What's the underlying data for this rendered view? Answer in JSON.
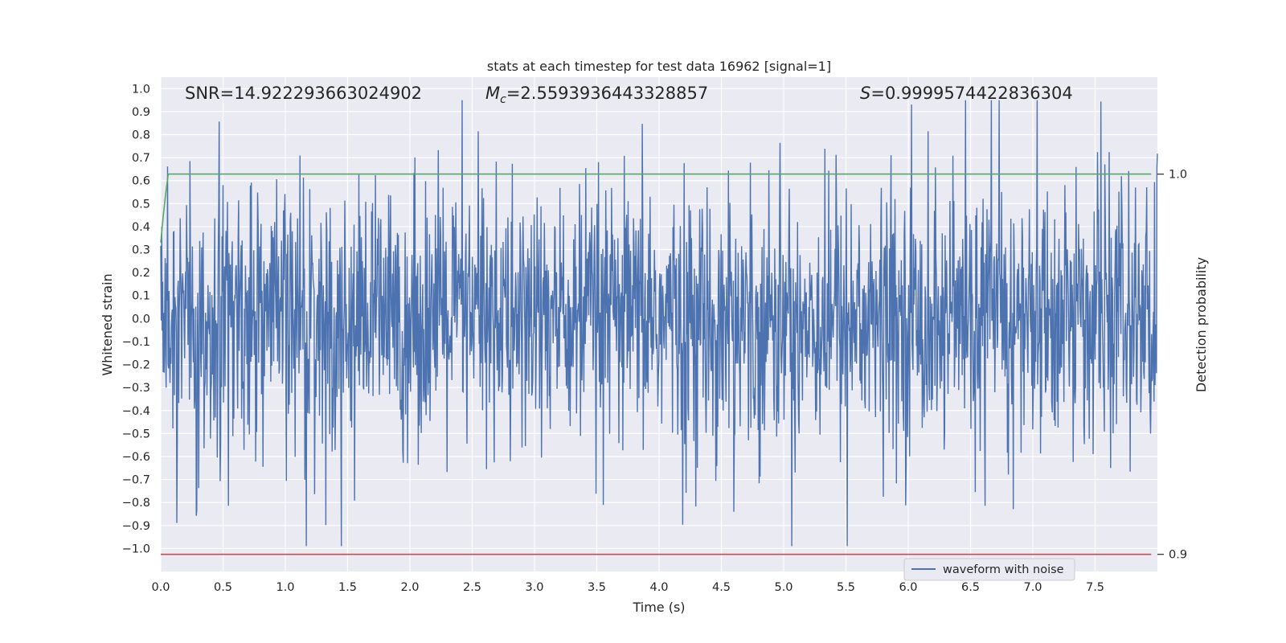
{
  "chart_data": {
    "type": "line",
    "title": "stats at each timestep for test data 16962 [signal=1]",
    "xlabel": "Time (s)",
    "ylabel": "Whitened strain",
    "y2label": "Detection probability",
    "xlim": [
      0.0,
      8.0
    ],
    "ylim": [
      -1.1,
      1.05
    ],
    "y2lim": [
      0.8955,
      1.0255
    ],
    "x_ticks": [
      "0.0",
      "0.5",
      "1.0",
      "1.5",
      "2.0",
      "2.5",
      "3.0",
      "3.5",
      "4.0",
      "4.5",
      "5.0",
      "5.5",
      "6.0",
      "6.5",
      "7.0",
      "7.5"
    ],
    "x_tick_values": [
      0,
      0.5,
      1,
      1.5,
      2,
      2.5,
      3,
      3.5,
      4,
      4.5,
      5,
      5.5,
      6,
      6.5,
      7,
      7.5
    ],
    "y_ticks": [
      "1.0",
      "0.9",
      "0.8",
      "0.7",
      "0.6",
      "0.5",
      "0.4",
      "0.3",
      "0.2",
      "0.1",
      "0.0",
      "−0.1",
      "−0.2",
      "−0.3",
      "−0.4",
      "−0.5",
      "−0.6",
      "−0.7",
      "−0.8",
      "−0.9",
      "−1.0"
    ],
    "y_tick_values": [
      1,
      0.9,
      0.8,
      0.7,
      0.6,
      0.5,
      0.4,
      0.3,
      0.2,
      0.1,
      0,
      -0.1,
      -0.2,
      -0.3,
      -0.4,
      -0.5,
      -0.6,
      -0.7,
      -0.8,
      -0.9,
      -1.0
    ],
    "y2_ticks": [
      "1.0",
      "0.9"
    ],
    "y2_tick_values": [
      1.0,
      0.9
    ],
    "grid": true,
    "legend_position": "lower-right",
    "series": [
      {
        "name": "waveform with noise",
        "axis": "left",
        "color": "#4c72b0",
        "kind": "noise",
        "description_stats": {
          "samples": 2048,
          "x_start": 0.0,
          "x_end": 8.0,
          "y_min": -0.99,
          "y_max": 0.95
        }
      },
      {
        "axis": "right",
        "color": "#55a868",
        "x": [
          0.0,
          0.02,
          0.04,
          0.06,
          7.95
        ],
        "y": [
          0.982,
          0.989,
          0.995,
          1.0,
          1.0
        ]
      },
      {
        "axis": "right",
        "color": "#c44e52",
        "x": [
          0.0,
          7.95
        ],
        "y": [
          0.9,
          0.9
        ]
      }
    ],
    "annotations": {
      "snr": "SNR=14.922293663024902",
      "mc": "=2.5593936443328857",
      "s": "=0.9999574422836304"
    }
  }
}
